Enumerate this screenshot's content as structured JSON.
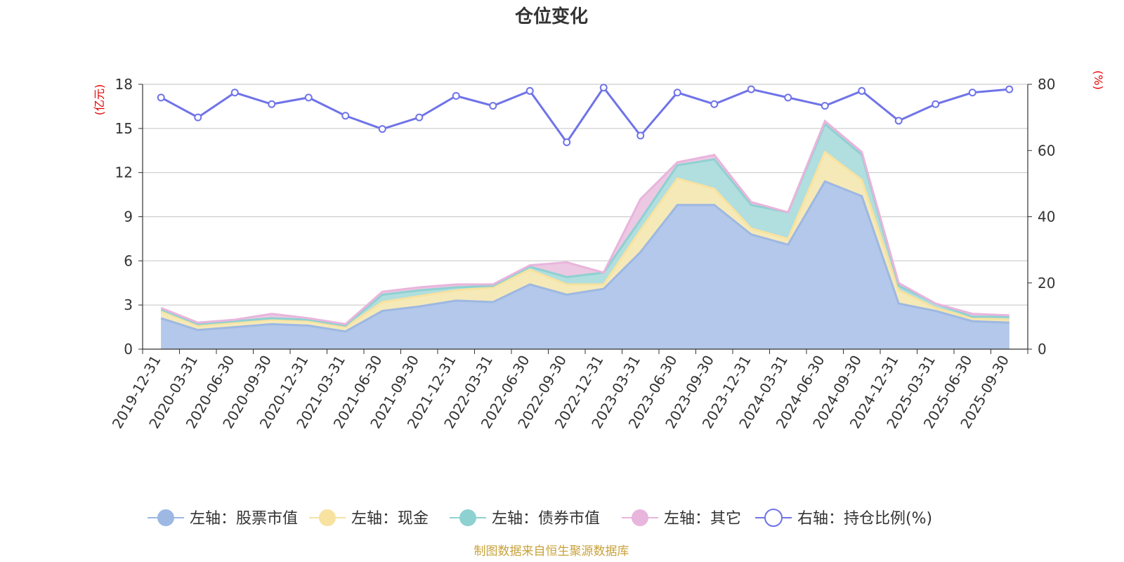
{
  "chart_data": {
    "type": "area",
    "title": "仓位变化",
    "source": "制图数据来自恒生聚源数据库",
    "left_axis": {
      "unit": "(亿元)",
      "ylim": [
        0,
        18
      ],
      "ticks": [
        0,
        3,
        6,
        9,
        12,
        15,
        18
      ]
    },
    "right_axis": {
      "unit": "(%)",
      "ylim": [
        0,
        80
      ],
      "ticks": [
        0,
        20,
        40,
        60,
        80
      ]
    },
    "categories": [
      "2019-12-31",
      "2020-03-31",
      "2020-06-30",
      "2020-09-30",
      "2020-12-31",
      "2021-03-31",
      "2021-06-30",
      "2021-09-30",
      "2021-12-31",
      "2022-03-31",
      "2022-06-30",
      "2022-09-30",
      "2022-12-31",
      "2023-03-31",
      "2023-06-30",
      "2023-09-30",
      "2023-12-31",
      "2024-03-31",
      "2024-06-30",
      "2024-09-30",
      "2024-12-31",
      "2025-03-31",
      "2025-06-30",
      "2025-09-30"
    ],
    "series": [
      {
        "name": "左轴：股票市值",
        "axis": "left",
        "kind": "stacked-area",
        "color": "#9db8e2",
        "fill": "#b3c8ea",
        "values": [
          2.1,
          1.3,
          1.5,
          1.7,
          1.6,
          1.2,
          2.6,
          2.9,
          3.3,
          3.2,
          4.4,
          3.7,
          4.1,
          6.6,
          9.8,
          9.8,
          7.8,
          7.1,
          11.4,
          10.4,
          3.1,
          2.6,
          1.9,
          1.8
        ]
      },
      {
        "name": "左轴：现金",
        "axis": "left",
        "kind": "stacked-area",
        "color": "#f7e2a0",
        "fill": "#f6e9b8",
        "values": [
          0.5,
          0.3,
          0.3,
          0.3,
          0.3,
          0.3,
          0.6,
          0.7,
          0.7,
          1.0,
          1.0,
          0.7,
          0.3,
          1.5,
          1.8,
          1.1,
          0.4,
          0.4,
          2.0,
          1.1,
          0.9,
          0.2,
          0.2,
          0.2
        ]
      },
      {
        "name": "左轴：债券市值",
        "axis": "left",
        "kind": "stacked-area",
        "color": "#8ed1d1",
        "fill": "#b1dede",
        "values": [
          0.1,
          0.1,
          0.1,
          0.1,
          0.1,
          0.1,
          0.5,
          0.4,
          0.2,
          0.1,
          0.2,
          0.5,
          0.8,
          0.7,
          0.9,
          2.0,
          1.6,
          1.8,
          1.9,
          1.7,
          0.3,
          0.3,
          0.1,
          0.2
        ]
      },
      {
        "name": "左轴：其它",
        "axis": "left",
        "kind": "stacked-area",
        "color": "#e8b5dc",
        "fill": "#ecc8e3",
        "values": [
          0.1,
          0.1,
          0.1,
          0.3,
          0.1,
          0.1,
          0.2,
          0.2,
          0.2,
          0.1,
          0.1,
          1.0,
          0.0,
          1.4,
          0.2,
          0.3,
          0.2,
          0.0,
          0.2,
          0.2,
          0.2,
          0.0,
          0.2,
          0.1
        ]
      },
      {
        "name": "右轴：持仓比例(%)",
        "axis": "right",
        "kind": "line",
        "color": "#6f73e8",
        "values": [
          76,
          70,
          77.5,
          74,
          76,
          70.5,
          66.5,
          70,
          76.5,
          73.5,
          78,
          62.5,
          79,
          64.5,
          77.5,
          74,
          78.5,
          76,
          73.5,
          78,
          69,
          74,
          77.5,
          78.5
        ]
      }
    ],
    "legend_position": "bottom-center"
  }
}
